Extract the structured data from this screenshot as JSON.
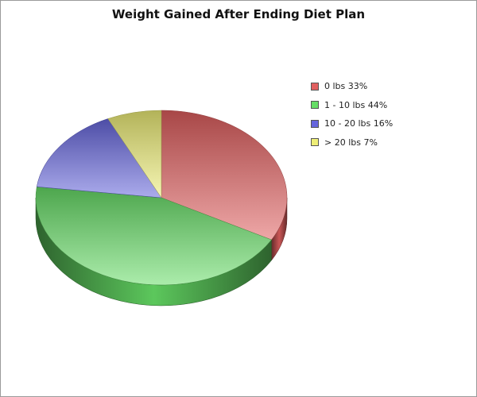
{
  "chart_data": {
    "type": "pie",
    "title": "Weight Gained After Ending Diet Plan",
    "categories": [
      "0 lbs",
      "1 - 10 lbs",
      "10 - 20 lbs",
      "> 20 lbs"
    ],
    "values": [
      33,
      44,
      16,
      7
    ],
    "unit": "%",
    "legend_position": "right",
    "colors": [
      "#e05f5f",
      "#66dd66",
      "#6666dd",
      "#eeee77"
    ],
    "legend": [
      {
        "label": "0 lbs 33%"
      },
      {
        "label": "1 - 10 lbs 44%"
      },
      {
        "label": "10 - 20 lbs 16%"
      },
      {
        "label": "> 20 lbs 7%"
      }
    ]
  }
}
